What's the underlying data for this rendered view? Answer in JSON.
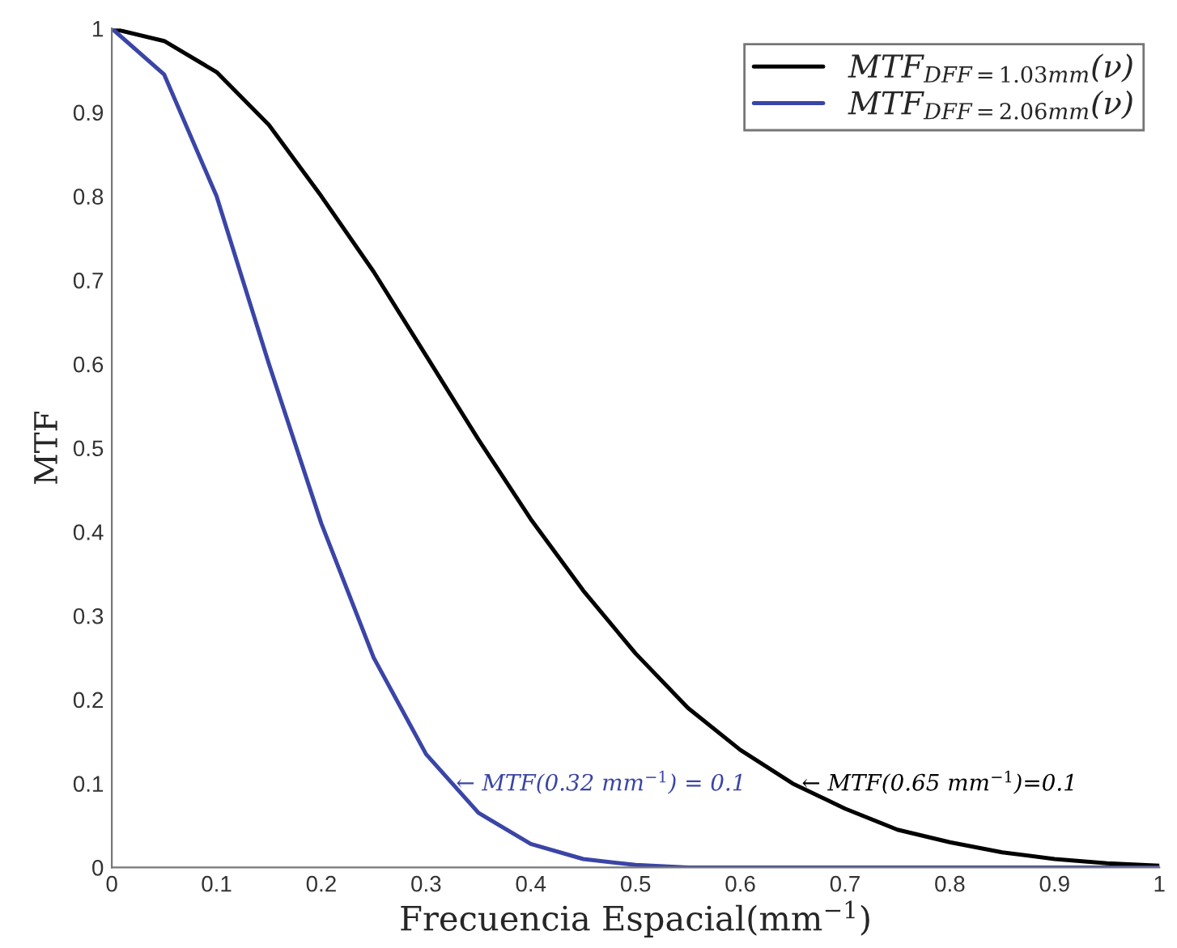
{
  "chart_data": {
    "type": "line",
    "xlabel": "Frecuencia Espacial(mm$^{−1}$)",
    "ylabel": "MTF",
    "x": [
      0,
      0.05,
      0.1,
      0.15,
      0.2,
      0.25,
      0.3,
      0.35,
      0.4,
      0.45,
      0.5,
      0.55,
      0.6,
      0.65,
      0.7,
      0.75,
      0.8,
      0.85,
      0.9,
      0.95,
      1.0
    ],
    "series": [
      {
        "name": "MTF$_{DFF=1.03mm}$(ν)",
        "color": "#000000",
        "values": [
          1,
          0.985,
          0.948,
          0.885,
          0.8,
          0.71,
          0.61,
          0.51,
          0.415,
          0.33,
          0.255,
          0.19,
          0.14,
          0.1,
          0.07,
          0.045,
          0.03,
          0.018,
          0.01,
          0.005,
          0.002
        ]
      },
      {
        "name": "MTF$_{DFF=2.06mm}$(ν)",
        "color": "#3a45a6",
        "values": [
          1,
          0.945,
          0.8,
          0.6,
          0.41,
          0.25,
          0.135,
          0.065,
          0.028,
          0.01,
          0.003,
          0,
          0,
          0,
          0,
          0,
          0,
          0,
          0,
          0,
          0
        ]
      }
    ],
    "annotations": [
      {
        "text": "← MTF(0.32 mm$^{−1}$) = 0.1",
        "x": 0.32,
        "y": 0.1
      },
      {
        "text": "← MTF(0.65 mm$^{−1}$)=0.1",
        "x": 0.65,
        "y": 0.1
      }
    ],
    "xlim": [
      0,
      1
    ],
    "xticks": [
      0,
      0.1,
      0.2,
      0.3,
      0.4,
      0.5,
      0.6,
      0.7,
      0.8,
      0.9,
      1
    ],
    "ylim": [
      0,
      1
    ],
    "yticks": [
      0,
      0.1,
      0.2,
      0.3,
      0.4,
      0.5,
      0.6,
      0.7,
      0.8,
      0.9,
      1
    ],
    "grid": false,
    "legend": "top right",
    "line_style": "solid",
    "marker": "none"
  }
}
